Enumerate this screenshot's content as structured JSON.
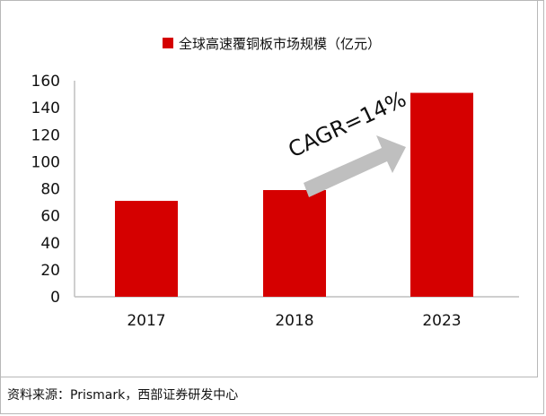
{
  "chart_data": {
    "type": "bar",
    "legend": {
      "label": "全球高速覆铜板市场规模（亿元）",
      "placement": "top"
    },
    "categories": [
      "2017",
      "2018",
      "2023"
    ],
    "series": [
      {
        "name": "全球高速覆铜板市场规模（亿元）",
        "values": [
          71,
          79,
          151
        ]
      }
    ],
    "ylim": [
      0,
      160
    ],
    "yticks": [
      "0",
      "20",
      "40",
      "60",
      "80",
      "100",
      "120",
      "140",
      "160"
    ],
    "grid": false,
    "annotation": {
      "text": "CAGR=14%",
      "from": "2018",
      "to": "2023"
    },
    "colors": {
      "bar": "#d50000",
      "arrow": "#bfbfbf",
      "axis": "#bfbfbf",
      "text": "#111111"
    }
  },
  "source_note": "资料来源：Prismark，西部证券研发中心"
}
